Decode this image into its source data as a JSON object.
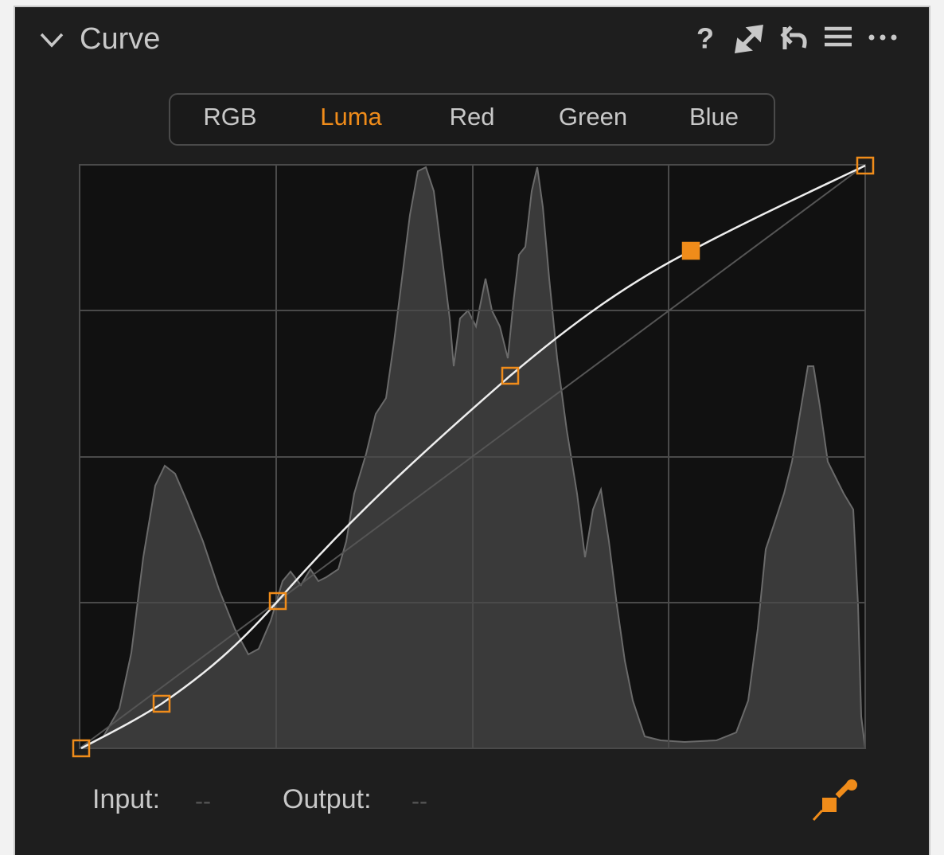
{
  "header": {
    "title": "Curve",
    "help": "?"
  },
  "tabs": {
    "items": [
      "RGB",
      "Luma",
      "Red",
      "Green",
      "Blue"
    ],
    "selected": 1
  },
  "readout": {
    "input_label": "Input:",
    "input_value": "--",
    "output_label": "Output:",
    "output_value": "--"
  }
}
